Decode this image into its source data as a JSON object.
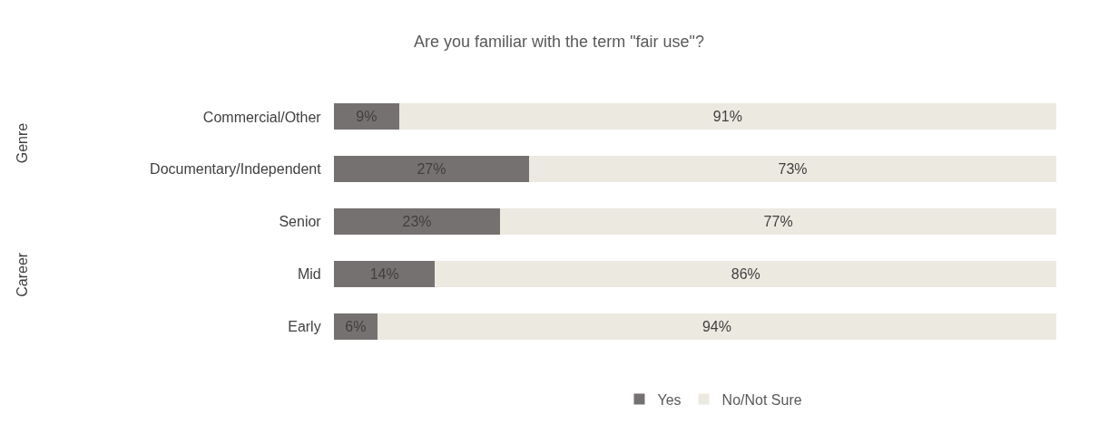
{
  "chart_data": {
    "type": "bar",
    "orientation": "horizontal",
    "stacked": true,
    "title": "Are you familiar with the term \"fair use\"?",
    "categories": [
      "Commercial/Other",
      "Documentary/Independent",
      "Senior",
      "Mid",
      "Early"
    ],
    "series": [
      {
        "name": "Yes",
        "color": "#767171",
        "values": [
          9,
          27,
          23,
          14,
          6
        ],
        "value_labels": [
          "9%",
          "27%",
          "23%",
          "14%",
          "6%"
        ]
      },
      {
        "name": "No/Not Sure",
        "color": "#ECE9E0",
        "values": [
          91,
          73,
          77,
          86,
          94
        ],
        "value_labels": [
          "91%",
          "73%",
          "77%",
          "86%",
          "94%"
        ]
      }
    ],
    "annotations": [
      "Genre",
      "Career"
    ],
    "legend": "bottom"
  }
}
